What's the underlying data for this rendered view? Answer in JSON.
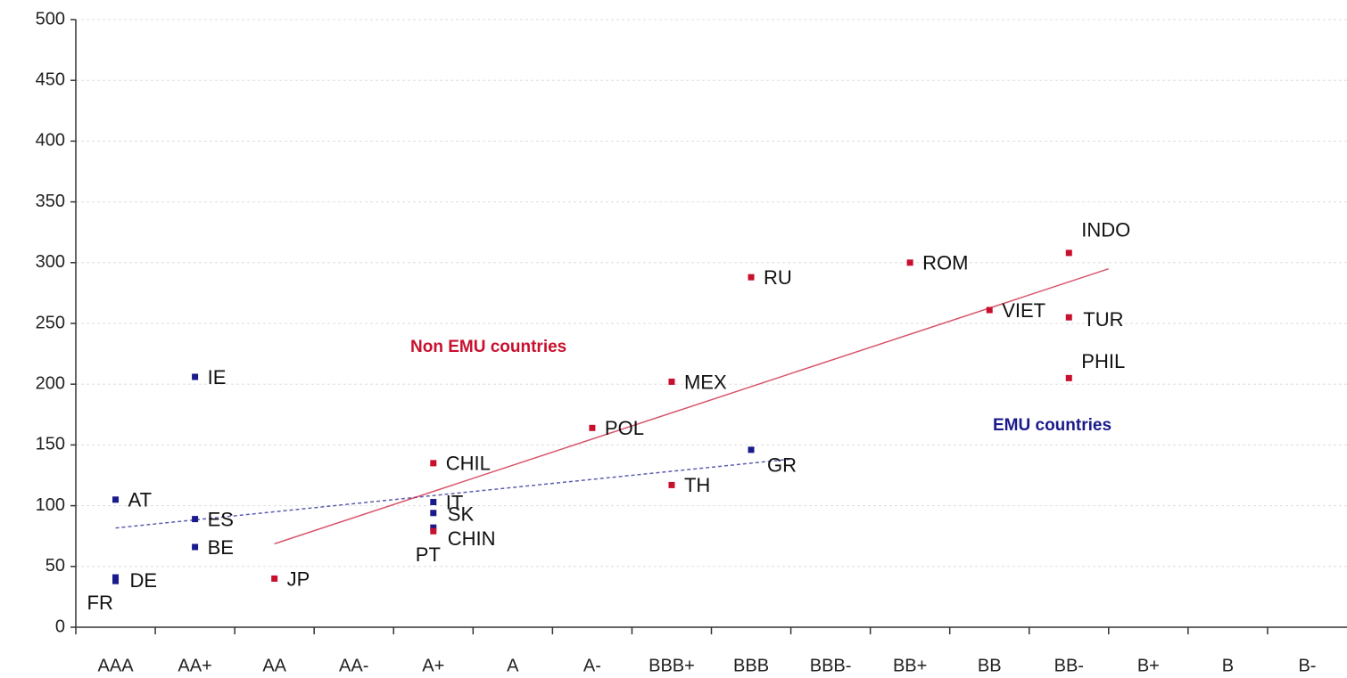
{
  "chart_data": {
    "type": "scatter",
    "categories": [
      "AAA",
      "AA+",
      "AA",
      "AA-",
      "A+",
      "A",
      "A-",
      "BBB+",
      "BBB",
      "BBB-",
      "BB+",
      "BB",
      "BB-",
      "B+",
      "B",
      "B-"
    ],
    "ylim": [
      0,
      500
    ],
    "yticks": [
      0,
      50,
      100,
      150,
      200,
      250,
      300,
      350,
      400,
      450,
      500
    ],
    "grid": true,
    "series": [
      {
        "name": "EMU countries",
        "color": "#1a1a8c",
        "x": [
          "AAA",
          "AAA",
          "AAA",
          "AA+",
          "AA+",
          "AA+",
          "A+",
          "A+",
          "A+",
          "BBB"
        ],
        "values": [
          105,
          38,
          41,
          89,
          66,
          206,
          103,
          94,
          82,
          146
        ],
        "labels": [
          "AT",
          "FR",
          "DE",
          "ES",
          "BE",
          "IE",
          "IT",
          "SK",
          "PT",
          "GR"
        ]
      },
      {
        "name": "Non EMU countries",
        "color": "#c8102e",
        "x": [
          "AA",
          "A+",
          "A-",
          "BBB+",
          "BBB+",
          "BBB",
          "BB+",
          "BB",
          "BB-",
          "BB-",
          "BB-",
          "A+"
        ],
        "values": [
          40,
          135,
          164,
          202,
          117,
          288,
          300,
          261,
          308,
          255,
          205,
          79
        ],
        "labels": [
          "JP",
          "CHIL",
          "POL",
          "MEX",
          "TH",
          "RU",
          "ROM",
          "VIET",
          "INDO",
          "TUR",
          "PHIL",
          "CHIN"
        ]
      }
    ]
  }
}
